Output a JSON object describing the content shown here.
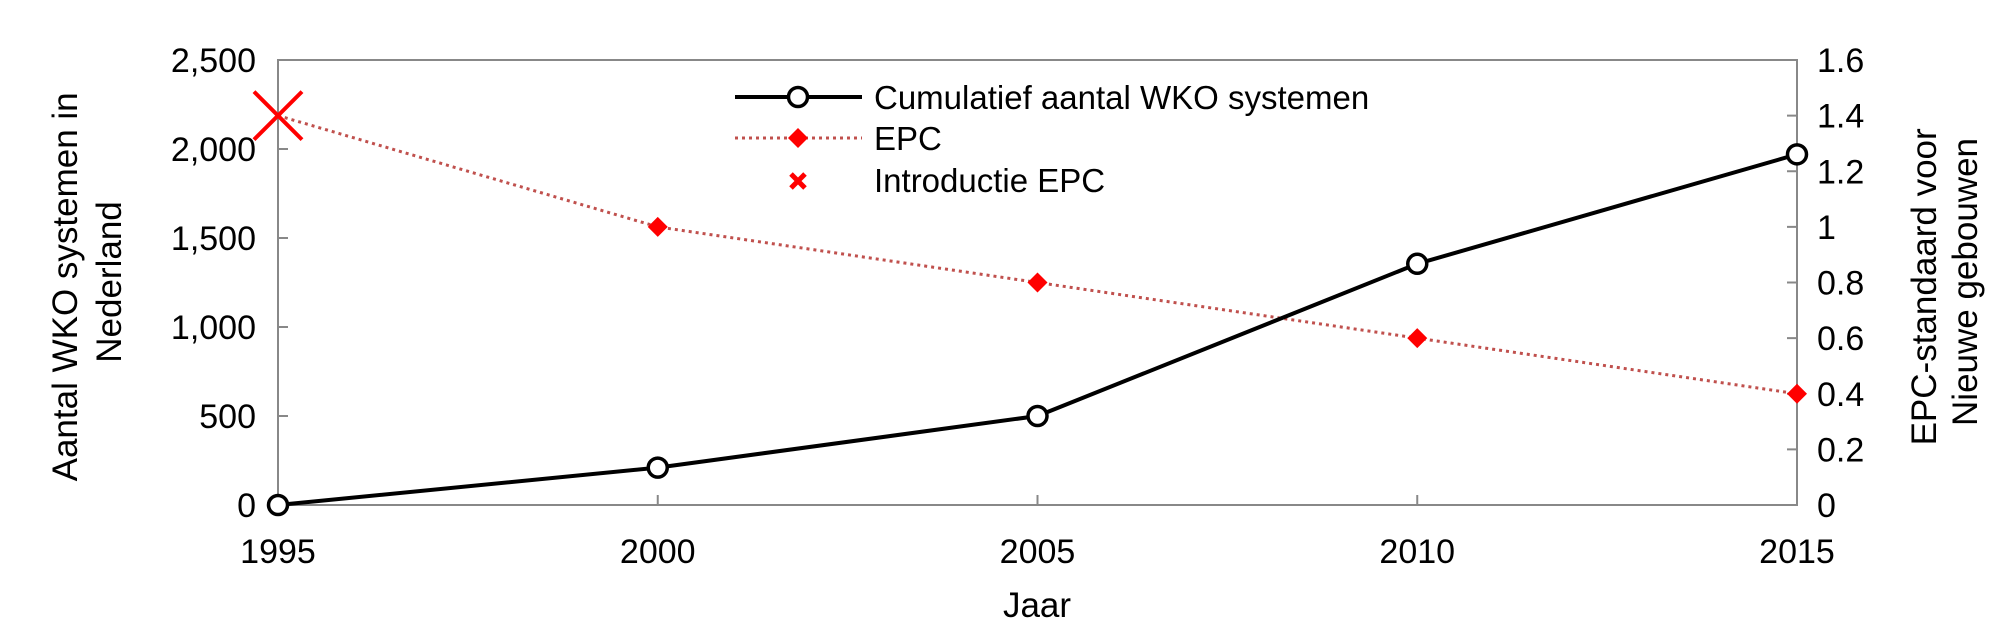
{
  "chart_data": {
    "type": "line",
    "x": [
      1995,
      2000,
      2005,
      2010,
      2015
    ],
    "xlabel": "Jaar",
    "x_ticks": [
      "1995",
      "2000",
      "2005",
      "2010",
      "2015"
    ],
    "xlim": [
      1995,
      2015
    ],
    "y_left": {
      "label_line1": "Aantal WKO systemen in",
      "label_line2": "Nederland",
      "ylim": [
        0,
        2500
      ],
      "ticks": [
        0,
        500,
        1000,
        1500,
        2000,
        2500
      ],
      "tick_labels": [
        "0",
        "500",
        "1,000",
        "1,500",
        "2,000",
        "2,500"
      ]
    },
    "y_right": {
      "label_line1": "EPC-standaard voor",
      "label_line2": "Nieuwe gebouwen",
      "ylim": [
        0,
        1.6
      ],
      "ticks": [
        0,
        0.2,
        0.4,
        0.6,
        0.8,
        1,
        1.2,
        1.4,
        1.6
      ],
      "tick_labels": [
        "0",
        "0.2",
        "0.4",
        "0.6",
        "0.8",
        "1",
        "1.2",
        "1.4",
        "1.6"
      ]
    },
    "series": [
      {
        "name": "Cumulatief aantal WKO systemen",
        "axis": "left",
        "x": [
          1995,
          2000,
          2005,
          2010,
          2015
        ],
        "values": [
          0,
          210,
          500,
          1355,
          1970
        ],
        "color": "#000000",
        "marker": "open-circle",
        "line": "solid"
      },
      {
        "name": "EPC",
        "axis": "right",
        "x": [
          2000,
          2005,
          2010,
          2015
        ],
        "values": [
          1.0,
          0.8,
          0.6,
          0.4
        ],
        "line_x": [
          1995,
          2000,
          2005,
          2010,
          2015
        ],
        "line_values": [
          1.4,
          1.0,
          0.8,
          0.6,
          0.4
        ],
        "color": "#ff0000",
        "line_color": "#c0504d",
        "marker": "diamond",
        "line": "dotted"
      },
      {
        "name": "Introductie EPC",
        "axis": "right",
        "x": [
          1995
        ],
        "values": [
          1.4
        ],
        "color": "#ff0000",
        "marker": "x"
      }
    ],
    "legend_position": "top-center",
    "grid": false
  }
}
